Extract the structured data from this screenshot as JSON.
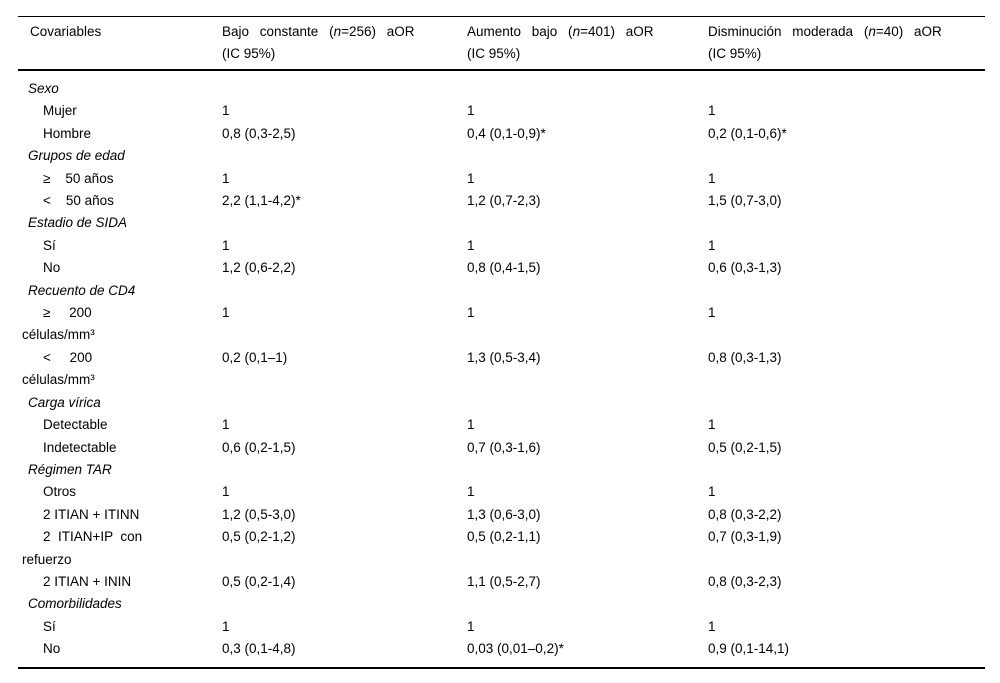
{
  "table": {
    "header": {
      "col1": "Covariables",
      "col2": {
        "pre": "Bajo constante (",
        "n": "n",
        "post": "=256) aOR",
        "line2": "(IC 95%)"
      },
      "col3": {
        "pre": "Aumento bajo (",
        "n": "n",
        "post": "=401) aOR",
        "line2": "(IC 95%)"
      },
      "col4": {
        "pre": "Disminución moderada (",
        "n": "n",
        "post": "=40) aOR",
        "line2": "(IC 95%)"
      }
    },
    "rows": [
      {
        "type": "group",
        "label": "Sexo",
        "values": [
          "",
          "",
          ""
        ]
      },
      {
        "type": "item",
        "label": "Mujer",
        "values": [
          "1",
          "1",
          "1"
        ]
      },
      {
        "type": "item",
        "label": "Hombre",
        "values": [
          "0,8 (0,3-2,5)",
          "0,4 (0,1-0,9)*",
          "0,2 (0,1-0,6)*"
        ]
      },
      {
        "type": "group",
        "label": "Grupos de edad",
        "values": [
          "",
          "",
          ""
        ]
      },
      {
        "type": "item",
        "label": "≥    50 años",
        "values": [
          "1",
          "1",
          "1"
        ]
      },
      {
        "type": "item",
        "label": "<    50 años",
        "values": [
          "2,2 (1,1-4,2)*",
          "1,2 (0,7-2,3)",
          "1,5 (0,7-3,0)"
        ]
      },
      {
        "type": "group",
        "label": "Estadio de SIDA",
        "values": [
          "",
          "",
          ""
        ]
      },
      {
        "type": "item",
        "label": "Sí",
        "values": [
          "1",
          "1",
          "1"
        ]
      },
      {
        "type": "item",
        "label": "No",
        "values": [
          "1,2 (0,6-2,2)",
          "0,8 (0,4-1,5)",
          "0,6 (0,3-1,3)"
        ]
      },
      {
        "type": "group",
        "label": "Recuento de CD4",
        "values": [
          "",
          "",
          ""
        ]
      },
      {
        "type": "item",
        "label": "≥     200\ncélulas/mm³",
        "values": [
          "1",
          "1",
          "1"
        ]
      },
      {
        "type": "item",
        "label": "<     200\ncélulas/mm³",
        "values": [
          "0,2 (0,1–1)",
          "1,3 (0,5-3,4)",
          "0,8 (0,3-1,3)"
        ]
      },
      {
        "type": "group",
        "label": "Carga vírica",
        "values": [
          "",
          "",
          ""
        ]
      },
      {
        "type": "item",
        "label": "Detectable",
        "values": [
          "1",
          "1",
          "1"
        ]
      },
      {
        "type": "item",
        "label": "Indetectable",
        "values": [
          "0,6 (0,2-1,5)",
          "0,7 (0,3-1,6)",
          "0,5 (0,2-1,5)"
        ]
      },
      {
        "type": "group",
        "label": "Régimen TAR",
        "values": [
          "",
          "",
          ""
        ]
      },
      {
        "type": "item",
        "label": "Otros",
        "values": [
          "1",
          "1",
          "1"
        ]
      },
      {
        "type": "item",
        "label": "2 ITIAN + ITINN",
        "values": [
          "1,2 (0,5-3,0)",
          "1,3 (0,6-3,0)",
          "0,8 (0,3-2,2)"
        ]
      },
      {
        "type": "item",
        "label": "2  ITIAN+IP  con\nrefuerzo",
        "values": [
          "0,5 (0,2-1,2)",
          "0,5 (0,2-1,1)",
          "0,7 (0,3-1,9)"
        ]
      },
      {
        "type": "item",
        "label": "2 ITIAN + ININ",
        "values": [
          "0,5 (0,2-1,4)",
          "1,1 (0,5-2,7)",
          "0,8 (0,3-2,3)"
        ]
      },
      {
        "type": "group",
        "label": "Comorbilidades",
        "values": [
          "",
          "",
          ""
        ]
      },
      {
        "type": "item",
        "label": "Sí",
        "values": [
          "1",
          "1",
          "1"
        ]
      },
      {
        "type": "item",
        "label": "No",
        "values": [
          "0,3 (0,1-4,8)",
          "0,03 (0,01–0,2)*",
          "0,9 (0,1-14,1)"
        ]
      }
    ]
  }
}
